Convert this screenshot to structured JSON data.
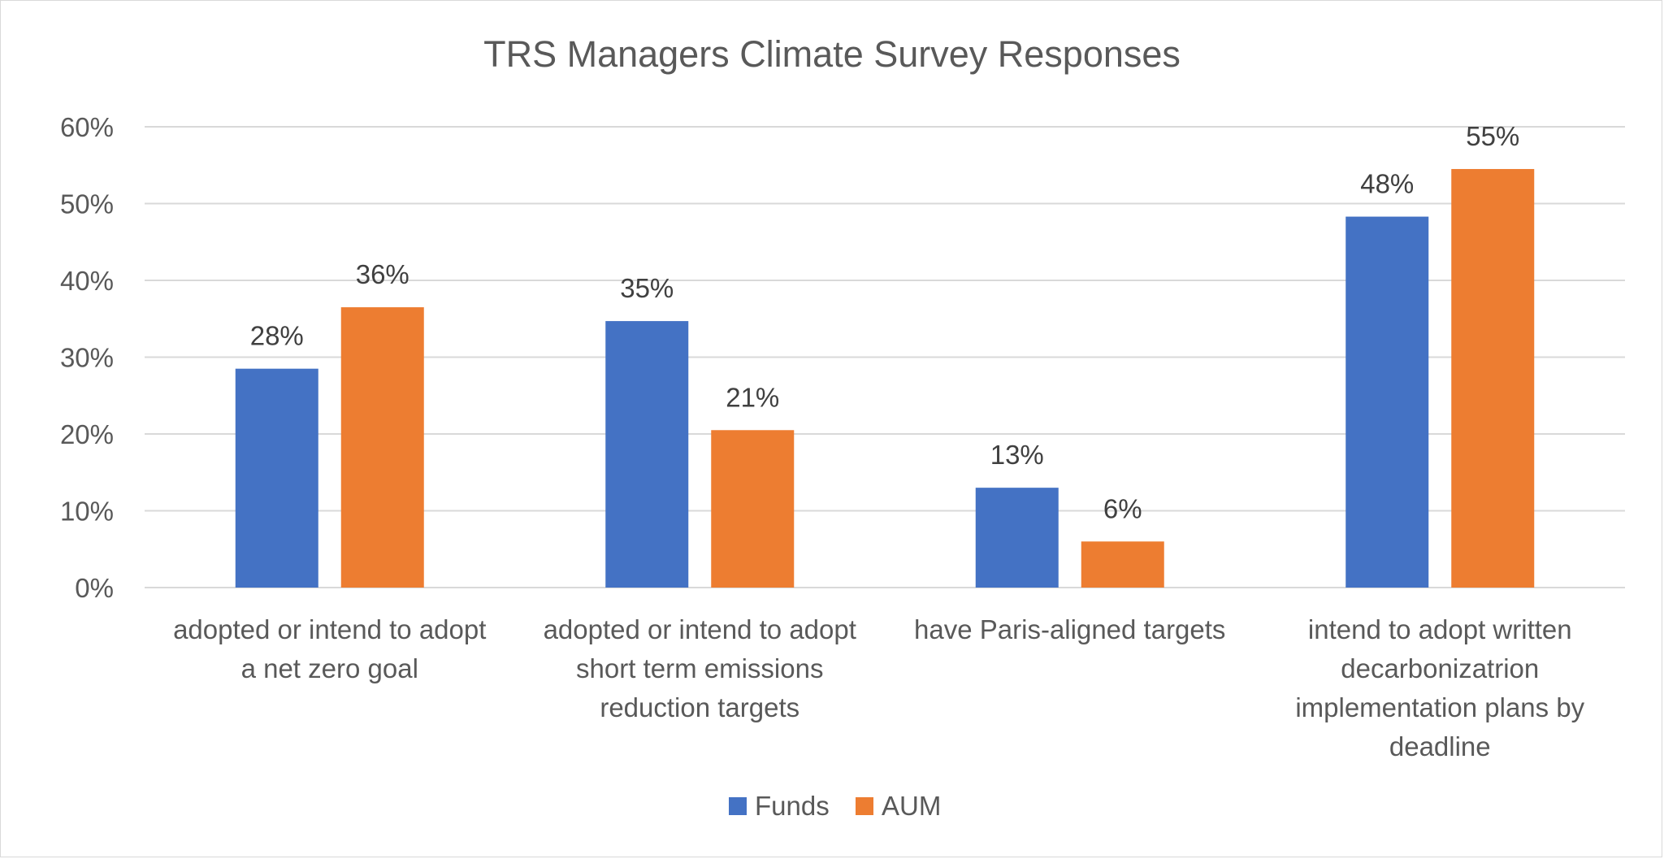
{
  "chart_data": {
    "type": "bar",
    "title": "TRS Managers Climate Survey Responses",
    "xlabel": "",
    "ylabel": "",
    "ylim": [
      0,
      0.6
    ],
    "yticks": [
      "0%",
      "10%",
      "20%",
      "30%",
      "40%",
      "50%",
      "60%"
    ],
    "grid": true,
    "legend_position": "bottom",
    "categories": [
      [
        "adopted or intend to adopt",
        "a net zero goal"
      ],
      [
        "adopted or intend to adopt",
        "short term emissions",
        "reduction targets"
      ],
      [
        "have Paris-aligned targets"
      ],
      [
        "intend to adopt written",
        "decarbonizatrion",
        "implementation plans by",
        "deadline"
      ]
    ],
    "series": [
      {
        "name": "Funds",
        "color": "#4472C4",
        "values": [
          0.285,
          0.347,
          0.13,
          0.483
        ],
        "labels": [
          "28%",
          "35%",
          "13%",
          "48%"
        ]
      },
      {
        "name": "AUM",
        "color": "#ED7D31",
        "values": [
          0.365,
          0.205,
          0.06,
          0.545
        ],
        "labels": [
          "36%",
          "21%",
          "6%",
          "55%"
        ]
      }
    ]
  }
}
